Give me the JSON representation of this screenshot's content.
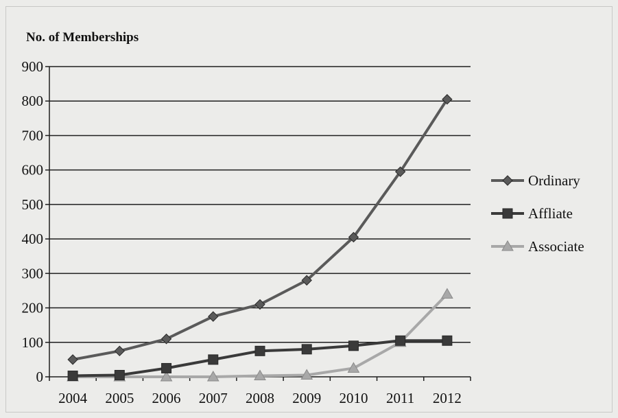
{
  "chart_data": {
    "type": "line",
    "title": "",
    "ylabel": "No. of Memberships",
    "xlabel": "",
    "categories": [
      "2004",
      "2005",
      "2006",
      "2007",
      "2008",
      "2009",
      "2010",
      "2011",
      "2012"
    ],
    "ylim": [
      0,
      900
    ],
    "yticks": [
      0,
      100,
      200,
      300,
      400,
      500,
      600,
      700,
      800,
      900
    ],
    "grid": true,
    "legend_position": "right",
    "series": [
      {
        "name": "Ordinary",
        "marker": "diamond",
        "color": "#5a5a5a",
        "values": [
          50,
          75,
          110,
          175,
          210,
          280,
          405,
          595,
          805
        ]
      },
      {
        "name": "Affliate",
        "marker": "square",
        "color": "#3a3a3a",
        "values": [
          3,
          5,
          25,
          50,
          75,
          80,
          90,
          105,
          105
        ]
      },
      {
        "name": "Associate",
        "marker": "triangle",
        "color": "#a8a8a8",
        "values": [
          0,
          0,
          0,
          0,
          3,
          5,
          25,
          100,
          240
        ]
      }
    ]
  }
}
